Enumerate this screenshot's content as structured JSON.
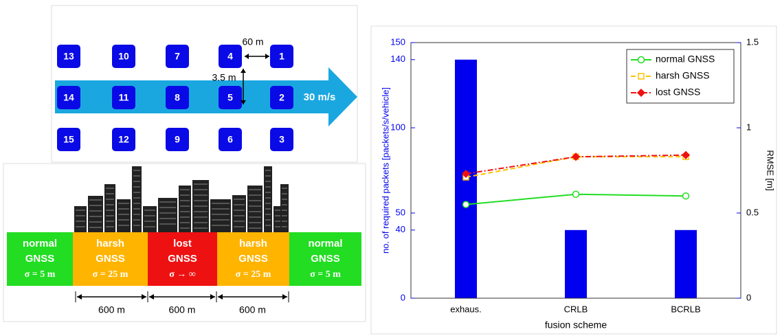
{
  "diagram": {
    "vehicles": [
      "13",
      "10",
      "7",
      "4",
      "1",
      "14",
      "11",
      "8",
      "5",
      "2",
      "15",
      "12",
      "9",
      "6",
      "3"
    ],
    "spacing_label": "60 m",
    "lane_label": "3.5 m",
    "speed_label": "30 m/s",
    "zones": [
      {
        "line1": "normal",
        "line2": "GNSS",
        "sigma": "σ = 5 m",
        "color": "#22dd22"
      },
      {
        "line1": "harsh",
        "line2": "GNSS",
        "sigma": "σ = 25 m",
        "color": "#ffb400"
      },
      {
        "line1": "lost",
        "line2": "GNSS",
        "sigma": "σ → ∞",
        "color": "#ee1111"
      },
      {
        "line1": "harsh",
        "line2": "GNSS",
        "sigma": "σ = 25 m",
        "color": "#ffb400"
      },
      {
        "line1": "normal",
        "line2": "GNSS",
        "sigma": "σ = 5 m",
        "color": "#22dd22"
      }
    ],
    "distances": [
      "600 m",
      "600 m",
      "600 m"
    ]
  },
  "chart_data": {
    "type": "bar",
    "categories": [
      "exhaus.",
      "CRLB",
      "BCRLB"
    ],
    "values": [
      140,
      40,
      40
    ],
    "color": "#0000ee",
    "ylim": [
      0,
      150
    ],
    "yticks": [
      0,
      40,
      50,
      100,
      140,
      150
    ],
    "y2lim": [
      0,
      1.5
    ],
    "y2ticks": [
      0,
      0.5,
      1,
      1.5
    ],
    "xlabel": "fusion scheme",
    "ylabel": "no. of required packets [packets/s/vehicle]",
    "y2label": "RMSE [m]",
    "legend": "upper right",
    "series": [
      {
        "name": "normal GNSS",
        "color": "#22dd22",
        "marker": "circle",
        "dash": "solid",
        "axis": "y2",
        "values": [
          0.55,
          0.61,
          0.6
        ]
      },
      {
        "name": "harsh GNSS",
        "color": "#ffc000",
        "marker": "square",
        "dash": "dashed",
        "axis": "y2",
        "values": [
          0.71,
          0.83,
          0.83
        ]
      },
      {
        "name": "lost GNSS",
        "color": "#ee1111",
        "marker": "diamond",
        "dash": "dashdot",
        "axis": "y2",
        "values": [
          0.73,
          0.83,
          0.84
        ]
      }
    ]
  }
}
